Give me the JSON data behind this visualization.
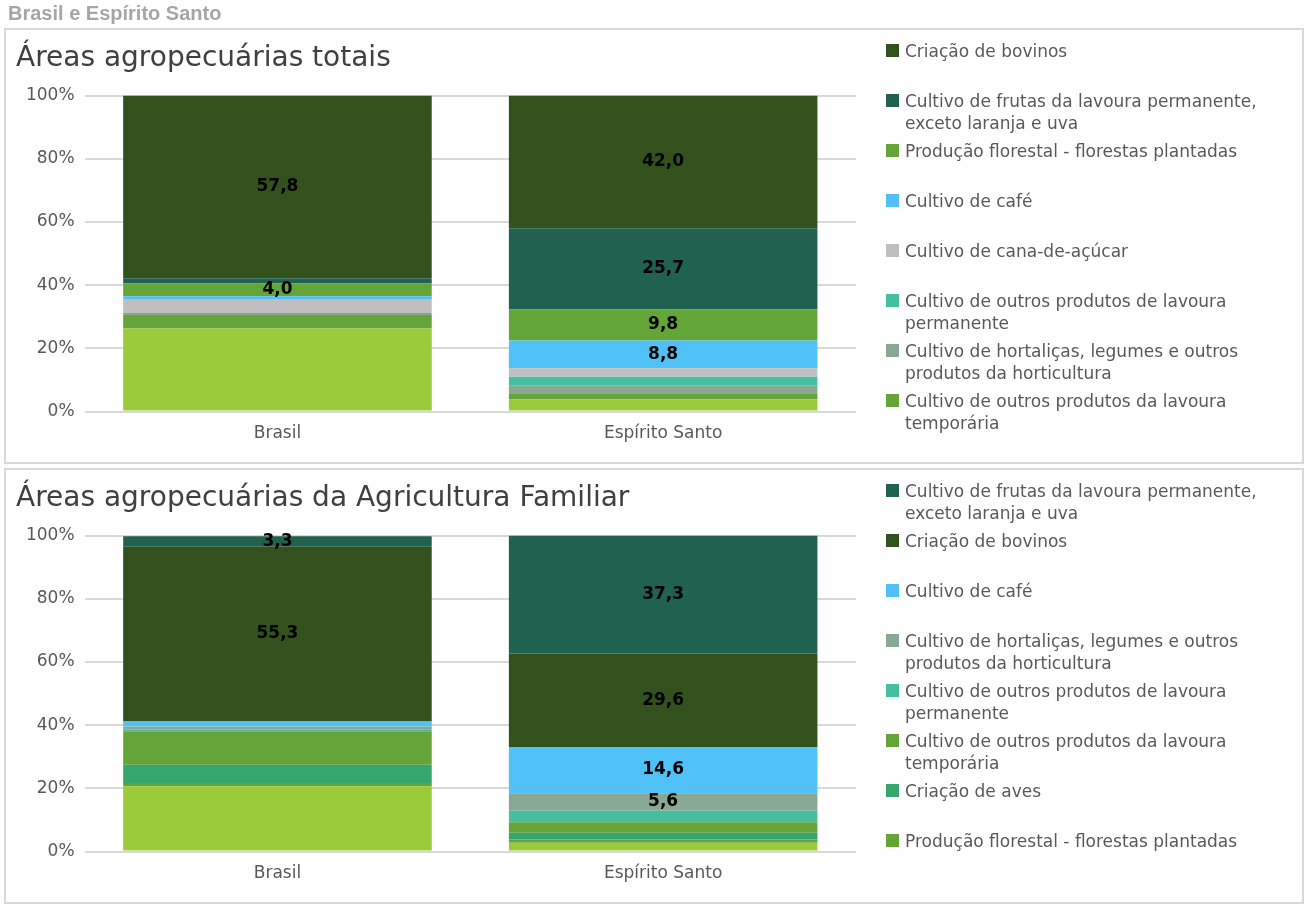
{
  "chart_data": [
    {
      "type": "bar",
      "stacked": true,
      "title": "Áreas agropecuárias totais",
      "annotations": [
        "Brasil e Espírito Santo"
      ],
      "categories": [
        "Brasil",
        "Espírito Santo"
      ],
      "ylim": [
        0,
        100
      ],
      "yticks": [
        {
          "value": 0,
          "label": "0%"
        },
        {
          "value": 20,
          "label": "20%"
        },
        {
          "value": 40,
          "label": "40%"
        },
        {
          "value": 60,
          "label": "60%"
        },
        {
          "value": 80,
          "label": "80%"
        },
        {
          "value": 100,
          "label": "100%"
        }
      ],
      "grid": "y",
      "legend": "right",
      "series": [
        {
          "color": "#9bca3b",
          "values": [
            26.3,
            3.9
          ]
        },
        {
          "name": "Cultivo de outros produtos da lavoura temporária",
          "color": "#64a438",
          "values": [
            4.3,
            1.9
          ]
        },
        {
          "name": "Cultivo de hortaliças, legumes e outros produtos da horticultura",
          "color": "#88a894",
          "values": [
            0.3,
            2.4
          ]
        },
        {
          "name": "Cultivo de outros produtos de lavoura permanente",
          "color": "#45bfa0",
          "values": [
            0.3,
            2.8
          ]
        },
        {
          "name": "Cultivo de cana-de-açúcar",
          "color": "#bfbfbf",
          "values": [
            4.2,
            2.7
          ]
        },
        {
          "name": "Cultivo de café",
          "color": "#4fc1f7",
          "values": [
            1.1,
            8.8
          ],
          "value_labels": [
            null,
            "8,8"
          ]
        },
        {
          "name": "Produção florestal - florestas plantadas",
          "color": "#63a537",
          "values": [
            4.0,
            9.8
          ],
          "value_labels": [
            "4,0",
            "9,8"
          ]
        },
        {
          "name": "Cultivo de frutas da lavoura permanente, exceto laranja e uva",
          "color": "#206150",
          "values": [
            1.7,
            25.7
          ],
          "value_labels": [
            null,
            "25,7"
          ]
        },
        {
          "name": "Criação de bovinos",
          "color": "#32511c",
          "values": [
            57.8,
            42.0
          ],
          "value_labels": [
            "57,8",
            "42,0"
          ]
        }
      ]
    },
    {
      "type": "bar",
      "stacked": true,
      "title": "Áreas agropecuárias da Agricultura Familiar",
      "categories": [
        "Brasil",
        "Espírito Santo"
      ],
      "ylim": [
        0,
        100
      ],
      "yticks": [
        {
          "value": 0,
          "label": "0%"
        },
        {
          "value": 20,
          "label": "20%"
        },
        {
          "value": 40,
          "label": "40%"
        },
        {
          "value": 60,
          "label": "60%"
        },
        {
          "value": 80,
          "label": "80%"
        },
        {
          "value": 100,
          "label": "100%"
        }
      ],
      "grid": "y",
      "legend": "right",
      "series": [
        {
          "color": "#9bca3b",
          "values": [
            20.7,
            2.8
          ]
        },
        {
          "name": "Produção florestal - florestas plantadas",
          "color": "#63a537",
          "values": [
            1.0,
            1.0
          ]
        },
        {
          "name": "Criação de aves",
          "color": "#37a66e",
          "values": [
            5.8,
            2.2
          ]
        },
        {
          "name": "Cultivo de outros produtos da lavoura temporária",
          "color": "#64a438",
          "values": [
            10.6,
            3.3
          ]
        },
        {
          "name": "Cultivo de outros produtos de lavoura permanente",
          "color": "#45bfa0",
          "values": [
            0.6,
            3.6
          ]
        },
        {
          "name": "Cultivo de hortaliças, legumes e outros produtos da horticultura",
          "color": "#88a894",
          "values": [
            0.9,
            5.6
          ],
          "value_labels": [
            null,
            "5,6"
          ]
        },
        {
          "name": "Cultivo de café",
          "color": "#4fc1f7",
          "values": [
            1.6,
            14.6
          ],
          "value_labels": [
            null,
            "14,6"
          ]
        },
        {
          "name": "Criação de bovinos",
          "color": "#32511c",
          "values": [
            55.3,
            29.6
          ],
          "value_labels": [
            "55,3",
            "29,6"
          ]
        },
        {
          "name": "Cultivo de frutas da lavoura permanente, exceto laranja e uva",
          "color": "#206150",
          "values": [
            3.3,
            37.3
          ],
          "value_labels": [
            "3,3",
            "37,3"
          ]
        }
      ]
    }
  ]
}
